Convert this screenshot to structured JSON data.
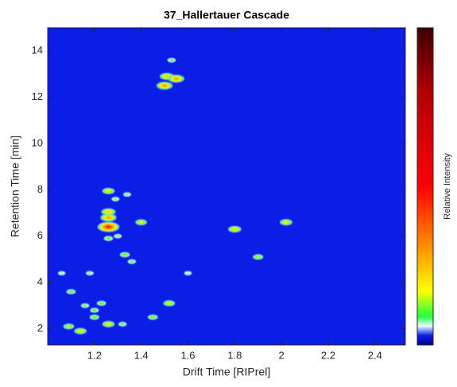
{
  "chart_data": {
    "type": "heatmap",
    "title": "37_Hallertauer Cascade",
    "x_label": "Drift Time [RIPrel]",
    "y_label": "Retention Time [min]",
    "colorbar_label": "Relative Intensity",
    "xlim": [
      1.0,
      2.53
    ],
    "ylim": [
      1.3,
      15
    ],
    "xticks": [
      1.2,
      1.4,
      1.6,
      1.8,
      2,
      2.2,
      2.4
    ],
    "yticks": [
      2,
      4,
      6,
      8,
      10,
      12,
      14
    ],
    "clim": [
      0,
      1
    ],
    "background": 0.03,
    "colormap": [
      {
        "offset": 0,
        "color": "#00008c"
      },
      {
        "offset": 0.03,
        "color": "#0a1ee6"
      },
      {
        "offset": 0.06,
        "color": "#e8ffff"
      },
      {
        "offset": 0.09,
        "color": "#20ff40"
      },
      {
        "offset": 0.17,
        "color": "#ffff00"
      },
      {
        "offset": 0.33,
        "color": "#ff8000"
      },
      {
        "offset": 0.5,
        "color": "#ff0000"
      },
      {
        "offset": 0.8,
        "color": "#b00000"
      },
      {
        "offset": 1,
        "color": "#3c0000"
      }
    ],
    "streaks": [
      {
        "x": [
          1.0,
          2.32
        ],
        "y": [
          6.3,
          6.3
        ],
        "value": 0.06
      },
      {
        "x": [
          1.26,
          1.26
        ],
        "y": [
          1.6,
          11.5
        ],
        "value": 0.05
      },
      {
        "x": [
          1.0,
          1.45
        ],
        "y": [
          3.1,
          3.1
        ],
        "value": 0.045
      },
      {
        "x": [
          1.53,
          1.53
        ],
        "y": [
          11.8,
          14.3
        ],
        "value": 0.05
      }
    ],
    "peaks": [
      {
        "x": 1.5,
        "y": 12.5,
        "value": 0.3
      },
      {
        "x": 1.51,
        "y": 12.9,
        "value": 0.25
      },
      {
        "x": 1.55,
        "y": 12.8,
        "value": 0.3
      },
      {
        "x": 1.53,
        "y": 13.6,
        "value": 0.1
      },
      {
        "x": 1.26,
        "y": 6.4,
        "value": 0.45
      },
      {
        "x": 1.26,
        "y": 6.8,
        "value": 0.3
      },
      {
        "x": 1.26,
        "y": 7.05,
        "value": 0.25
      },
      {
        "x": 1.26,
        "y": 7.95,
        "value": 0.2
      },
      {
        "x": 1.26,
        "y": 5.9,
        "value": 0.12
      },
      {
        "x": 1.4,
        "y": 6.6,
        "value": 0.18
      },
      {
        "x": 1.8,
        "y": 6.3,
        "value": 0.22
      },
      {
        "x": 2.02,
        "y": 6.6,
        "value": 0.2
      },
      {
        "x": 1.9,
        "y": 5.1,
        "value": 0.15
      },
      {
        "x": 1.52,
        "y": 3.1,
        "value": 0.18
      },
      {
        "x": 1.45,
        "y": 2.5,
        "value": 0.14
      },
      {
        "x": 1.26,
        "y": 2.2,
        "value": 0.2
      },
      {
        "x": 1.14,
        "y": 1.9,
        "value": 0.2
      },
      {
        "x": 1.09,
        "y": 2.1,
        "value": 0.16
      },
      {
        "x": 1.1,
        "y": 3.6,
        "value": 0.12
      },
      {
        "x": 1.33,
        "y": 5.2,
        "value": 0.14
      },
      {
        "x": 1.36,
        "y": 4.9,
        "value": 0.1
      },
      {
        "x": 1.23,
        "y": 3.1,
        "value": 0.12
      },
      {
        "x": 1.2,
        "y": 2.5,
        "value": 0.13
      },
      {
        "x": 1.32,
        "y": 2.2,
        "value": 0.1
      },
      {
        "x": 1.18,
        "y": 4.4,
        "value": 0.09
      },
      {
        "x": 1.29,
        "y": 7.6,
        "value": 0.09
      },
      {
        "x": 1.34,
        "y": 7.8,
        "value": 0.09
      },
      {
        "x": 1.3,
        "y": 6.0,
        "value": 0.09
      },
      {
        "x": 1.2,
        "y": 2.8,
        "value": 0.11
      },
      {
        "x": 1.6,
        "y": 4.4,
        "value": 0.08
      },
      {
        "x": 1.06,
        "y": 4.4,
        "value": 0.08
      },
      {
        "x": 1.16,
        "y": 3.0,
        "value": 0.1
      }
    ]
  }
}
